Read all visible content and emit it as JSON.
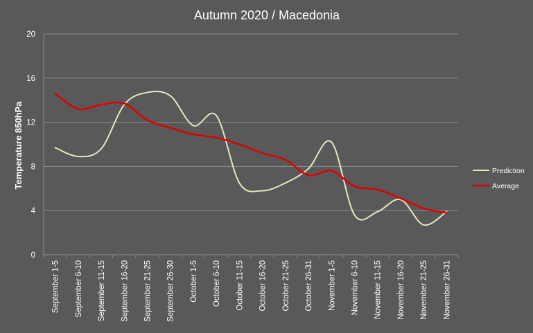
{
  "colors": {
    "background": "#595959",
    "grid": "#8c8c8c",
    "text": "#ffffff",
    "prediction": "#e8e6c3",
    "average": "#e00000"
  },
  "chart_data": {
    "type": "line",
    "title": "Autumn 2020 / Macedonia",
    "xlabel": "",
    "ylabel": "Temperature 850hPa",
    "ylim": [
      0,
      20
    ],
    "yticks": [
      0,
      4,
      8,
      12,
      16,
      20
    ],
    "grid": true,
    "legend": "right",
    "categories": [
      "September 1-5",
      "September 6-10",
      "September 11-15",
      "September 16-20",
      "September 21-25",
      "September 26-30",
      "October 1-5",
      "October 6-10",
      "October 11-15",
      "October 16-20",
      "October 21-25",
      "October 26-31",
      "November 1-5",
      "November 6-10",
      "November 11-15",
      "November 16-20",
      "November 21-25",
      "November 26-31"
    ],
    "series": [
      {
        "name": "Prediction",
        "color": "#e8e6c3",
        "values": [
          9.7,
          8.9,
          9.6,
          13.6,
          14.7,
          14.4,
          11.7,
          12.6,
          6.5,
          5.8,
          6.5,
          7.8,
          10.2,
          3.6,
          3.9,
          5.0,
          2.7,
          3.9
        ]
      },
      {
        "name": "Average",
        "color": "#e00000",
        "values": [
          14.6,
          13.2,
          13.6,
          13.7,
          12.2,
          11.5,
          10.9,
          10.6,
          10.0,
          9.2,
          8.6,
          7.2,
          7.6,
          6.2,
          5.9,
          5.1,
          4.2,
          3.8
        ]
      }
    ]
  }
}
